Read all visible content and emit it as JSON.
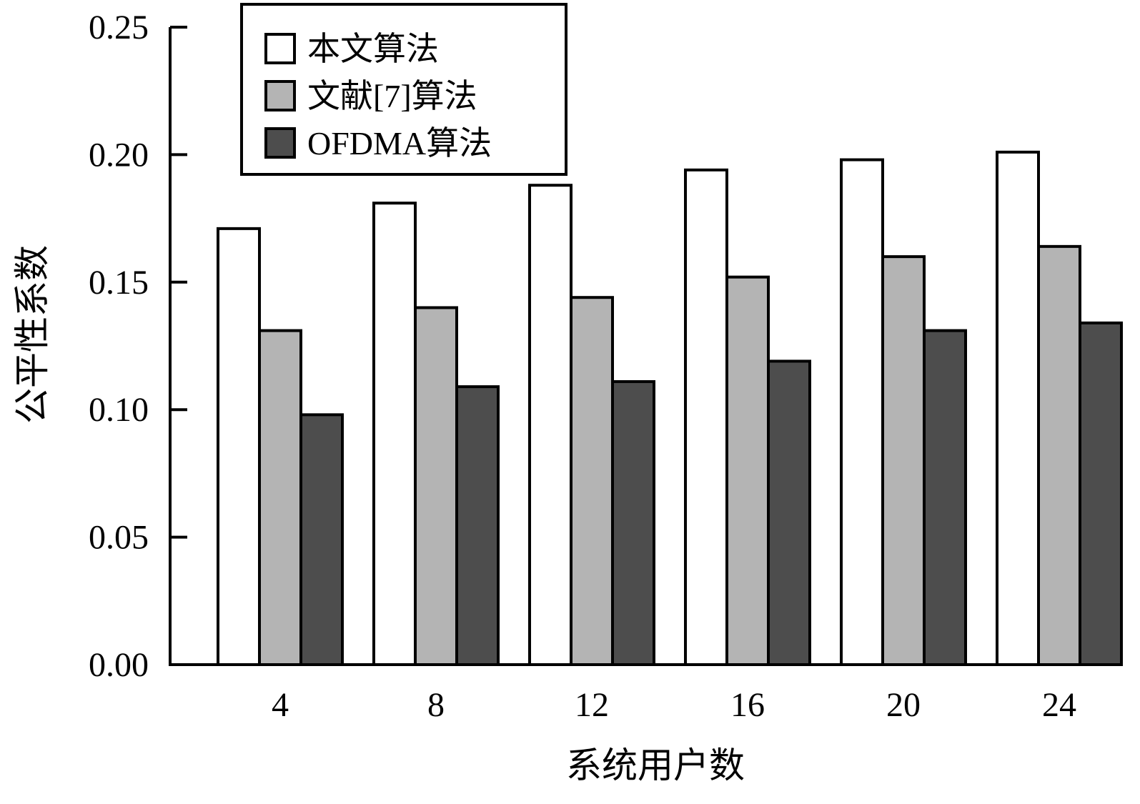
{
  "chart_data": {
    "type": "bar",
    "title": "",
    "xlabel": "系统用户数",
    "ylabel": "公平性系数",
    "categories": [
      "4",
      "8",
      "12",
      "16",
      "20",
      "24"
    ],
    "ylim": [
      0,
      0.25
    ],
    "yticks": [
      "0.00",
      "0.05",
      "0.10",
      "0.15",
      "0.20",
      "0.25"
    ],
    "grid": false,
    "legend_position": "top-left",
    "series": [
      {
        "name": "本文算法",
        "color": "#ffffff",
        "values": [
          0.171,
          0.181,
          0.188,
          0.194,
          0.198,
          0.201
        ]
      },
      {
        "name": "文献[7]算法",
        "color": "#b4b4b4",
        "values": [
          0.131,
          0.14,
          0.144,
          0.152,
          0.16,
          0.164
        ]
      },
      {
        "name": "OFDMA算法",
        "color": "#4d4d4d",
        "values": [
          0.098,
          0.109,
          0.111,
          0.119,
          0.131,
          0.134
        ]
      }
    ]
  }
}
